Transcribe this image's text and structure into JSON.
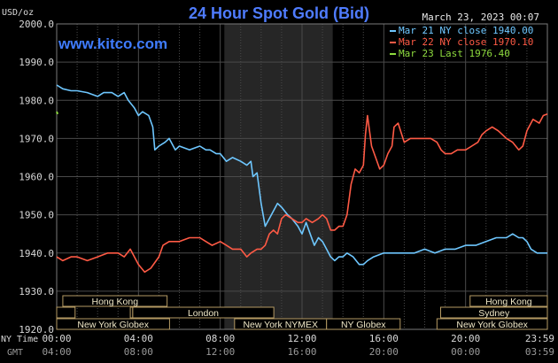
{
  "header": {
    "title": "24 Hour Spot Gold (Bid)",
    "site": "www.kitco.com",
    "unit": "USD/oz",
    "date": "March 23, 2023 00:07"
  },
  "colors": {
    "background": "#000000",
    "grid": "#4a4a4a",
    "nymex_shade": "#262626",
    "axis_text": "#d8d8d8",
    "session_fill": "#000000",
    "session_border": "#b59a63",
    "session_text": "#efe7c6"
  },
  "legend": [
    {
      "label": "Mar 21 NY close 1940.00",
      "color": "#6ec7ff"
    },
    {
      "label": "Mar 22 NY close 1970.10",
      "color": "#ff5a45"
    },
    {
      "label": "Mar 23 Last 1976.40",
      "color": "#8edb3e"
    }
  ],
  "sessions": {
    "row1": [
      {
        "label": "Hong Kong",
        "start": 0.5,
        "end": 9.0
      },
      {
        "label": "Hong Kong",
        "start": 33.7,
        "end": 40.0
      }
    ],
    "row2": [
      {
        "label": "",
        "start": 0.0,
        "end": 1.5
      },
      {
        "label": "",
        "start": 6.0,
        "end": 6.2
      },
      {
        "label": "London",
        "start": 6.2,
        "end": 17.7
      },
      {
        "label": "Sydney",
        "start": 31.3,
        "end": 40.0
      }
    ],
    "row3": [
      {
        "label": "New York Globex",
        "start": 0.0,
        "end": 9.2
      },
      {
        "label": "New York NYMEX",
        "start": 14.5,
        "end": 22.0
      },
      {
        "label": "NY Globex",
        "start": 22.0,
        "end": 28.0
      },
      {
        "label": "New York Globex",
        "start": 31.0,
        "end": 40.0
      }
    ]
  },
  "chart_data": {
    "type": "line",
    "title": "24 Hour Spot Gold (Bid)",
    "ylabel": "USD/oz",
    "xlabel": "",
    "ylim": [
      1920,
      2000
    ],
    "y_ticks": [
      "1920.0",
      "1930.0",
      "1940.0",
      "1950.0",
      "1960.0",
      "1970.0",
      "1980.0",
      "1990.0",
      "2000.0"
    ],
    "y_tick_values": [
      1920,
      1930,
      1940,
      1950,
      1960,
      1970,
      1980,
      1990,
      2000
    ],
    "xlim": [
      0,
      24
    ],
    "x_ticks_ny": [
      "00:00",
      "04:00",
      "08:00",
      "12:00",
      "16:00",
      "20:00",
      "23:59"
    ],
    "x_ticks_gmt": [
      "04:00",
      "08:00",
      "12:00",
      "16:00",
      "20:00",
      "00:00",
      "03:59"
    ],
    "x_tick_hours": [
      0,
      4,
      8,
      12,
      16,
      20,
      23.98
    ],
    "x_axis_labels": {
      "ny": "NY Time",
      "gmt": "GMT"
    },
    "grid": true,
    "legend_position": "top-right",
    "shaded_region_hours": [
      8.2,
      13.5
    ],
    "series": [
      {
        "name": "Mar 21 NY close 1940.00",
        "color": "#6ec7ff",
        "points": [
          [
            0,
            1984
          ],
          [
            0.3,
            1983
          ],
          [
            0.7,
            1982.5
          ],
          [
            1,
            1982.5
          ],
          [
            1.5,
            1982
          ],
          [
            2,
            1981
          ],
          [
            2.3,
            1982
          ],
          [
            2.7,
            1982
          ],
          [
            3,
            1981
          ],
          [
            3.3,
            1982
          ],
          [
            3.5,
            1980
          ],
          [
            3.8,
            1978
          ],
          [
            4,
            1976
          ],
          [
            4.2,
            1977
          ],
          [
            4.5,
            1976
          ],
          [
            4.7,
            1973
          ],
          [
            4.8,
            1967
          ],
          [
            5,
            1968
          ],
          [
            5.3,
            1969
          ],
          [
            5.5,
            1970
          ],
          [
            5.8,
            1967
          ],
          [
            6,
            1968
          ],
          [
            6.5,
            1967
          ],
          [
            7,
            1968
          ],
          [
            7.3,
            1967
          ],
          [
            7.5,
            1967
          ],
          [
            7.8,
            1966
          ],
          [
            8,
            1966
          ],
          [
            8.3,
            1964
          ],
          [
            8.6,
            1965
          ],
          [
            9,
            1964
          ],
          [
            9.3,
            1963
          ],
          [
            9.5,
            1964
          ],
          [
            9.6,
            1960
          ],
          [
            9.8,
            1961
          ],
          [
            10,
            1953
          ],
          [
            10.2,
            1947
          ],
          [
            10.5,
            1950
          ],
          [
            10.8,
            1953
          ],
          [
            11,
            1952
          ],
          [
            11.3,
            1950
          ],
          [
            11.5,
            1949
          ],
          [
            11.8,
            1947
          ],
          [
            12,
            1945
          ],
          [
            12.2,
            1948
          ],
          [
            12.4,
            1945
          ],
          [
            12.6,
            1942
          ],
          [
            12.8,
            1944
          ],
          [
            13,
            1943
          ],
          [
            13.2,
            1941
          ],
          [
            13.4,
            1939
          ],
          [
            13.6,
            1938
          ],
          [
            13.8,
            1939
          ],
          [
            14,
            1939
          ],
          [
            14.2,
            1940
          ],
          [
            14.5,
            1939
          ],
          [
            14.8,
            1937
          ],
          [
            15,
            1937
          ],
          [
            15.2,
            1938
          ],
          [
            15.5,
            1939
          ],
          [
            16,
            1940
          ],
          [
            16.5,
            1940
          ],
          [
            17,
            1940
          ],
          [
            17.5,
            1940
          ],
          [
            18,
            1941
          ],
          [
            18.5,
            1940
          ],
          [
            19,
            1941
          ],
          [
            19.5,
            1941
          ],
          [
            20,
            1942
          ],
          [
            20.5,
            1942
          ],
          [
            21,
            1943
          ],
          [
            21.5,
            1944
          ],
          [
            22,
            1944
          ],
          [
            22.3,
            1945
          ],
          [
            22.6,
            1944
          ],
          [
            22.8,
            1944
          ],
          [
            23,
            1943
          ],
          [
            23.2,
            1941
          ],
          [
            23.5,
            1940
          ],
          [
            23.8,
            1940
          ],
          [
            24,
            1940
          ]
        ]
      },
      {
        "name": "Mar 22 NY close 1970.10",
        "color": "#ff5a45",
        "points": [
          [
            0,
            1939
          ],
          [
            0.3,
            1938
          ],
          [
            0.7,
            1939
          ],
          [
            1,
            1939
          ],
          [
            1.5,
            1938
          ],
          [
            2,
            1939
          ],
          [
            2.5,
            1940
          ],
          [
            3,
            1940
          ],
          [
            3.3,
            1939
          ],
          [
            3.6,
            1941
          ],
          [
            4,
            1937
          ],
          [
            4.3,
            1935
          ],
          [
            4.6,
            1936
          ],
          [
            5,
            1939
          ],
          [
            5.2,
            1942
          ],
          [
            5.5,
            1943
          ],
          [
            6,
            1943
          ],
          [
            6.5,
            1944
          ],
          [
            7,
            1944
          ],
          [
            7.3,
            1943
          ],
          [
            7.6,
            1942
          ],
          [
            8,
            1943
          ],
          [
            8.3,
            1942
          ],
          [
            8.6,
            1941
          ],
          [
            9,
            1941
          ],
          [
            9.3,
            1939
          ],
          [
            9.5,
            1940
          ],
          [
            9.8,
            1941
          ],
          [
            10,
            1941
          ],
          [
            10.2,
            1942
          ],
          [
            10.4,
            1945
          ],
          [
            10.6,
            1946
          ],
          [
            10.8,
            1945
          ],
          [
            11,
            1949
          ],
          [
            11.2,
            1950
          ],
          [
            11.5,
            1949
          ],
          [
            11.8,
            1948
          ],
          [
            12,
            1948
          ],
          [
            12.2,
            1949
          ],
          [
            12.5,
            1948
          ],
          [
            12.8,
            1949
          ],
          [
            13,
            1950
          ],
          [
            13.2,
            1949
          ],
          [
            13.4,
            1946
          ],
          [
            13.6,
            1946
          ],
          [
            13.8,
            1947
          ],
          [
            14,
            1947
          ],
          [
            14.2,
            1950
          ],
          [
            14.4,
            1958
          ],
          [
            14.6,
            1962
          ],
          [
            14.8,
            1961
          ],
          [
            15,
            1963
          ],
          [
            15.1,
            1971
          ],
          [
            15.2,
            1976
          ],
          [
            15.4,
            1968
          ],
          [
            15.6,
            1965
          ],
          [
            15.8,
            1962
          ],
          [
            16,
            1963
          ],
          [
            16.2,
            1966
          ],
          [
            16.4,
            1968
          ],
          [
            16.5,
            1973
          ],
          [
            16.7,
            1974
          ],
          [
            17,
            1969
          ],
          [
            17.3,
            1970
          ],
          [
            17.6,
            1970
          ],
          [
            18,
            1970
          ],
          [
            18.3,
            1970
          ],
          [
            18.6,
            1969
          ],
          [
            18.8,
            1967
          ],
          [
            19,
            1966
          ],
          [
            19.3,
            1966
          ],
          [
            19.6,
            1967
          ],
          [
            20,
            1967
          ],
          [
            20.3,
            1968
          ],
          [
            20.6,
            1969
          ],
          [
            20.8,
            1971
          ],
          [
            21,
            1972
          ],
          [
            21.3,
            1973
          ],
          [
            21.6,
            1972
          ],
          [
            21.8,
            1971
          ],
          [
            22,
            1970
          ],
          [
            22.3,
            1969
          ],
          [
            22.6,
            1967
          ],
          [
            22.8,
            1968
          ],
          [
            23,
            1972
          ],
          [
            23.3,
            1975
          ],
          [
            23.6,
            1974
          ],
          [
            23.8,
            1976
          ],
          [
            24,
            1976.4
          ]
        ]
      },
      {
        "name": "Mar 23 Last 1976.40",
        "color": "#8edb3e",
        "points": [
          [
            0,
            1977
          ],
          [
            0.05,
            1976.4
          ]
        ]
      }
    ]
  }
}
